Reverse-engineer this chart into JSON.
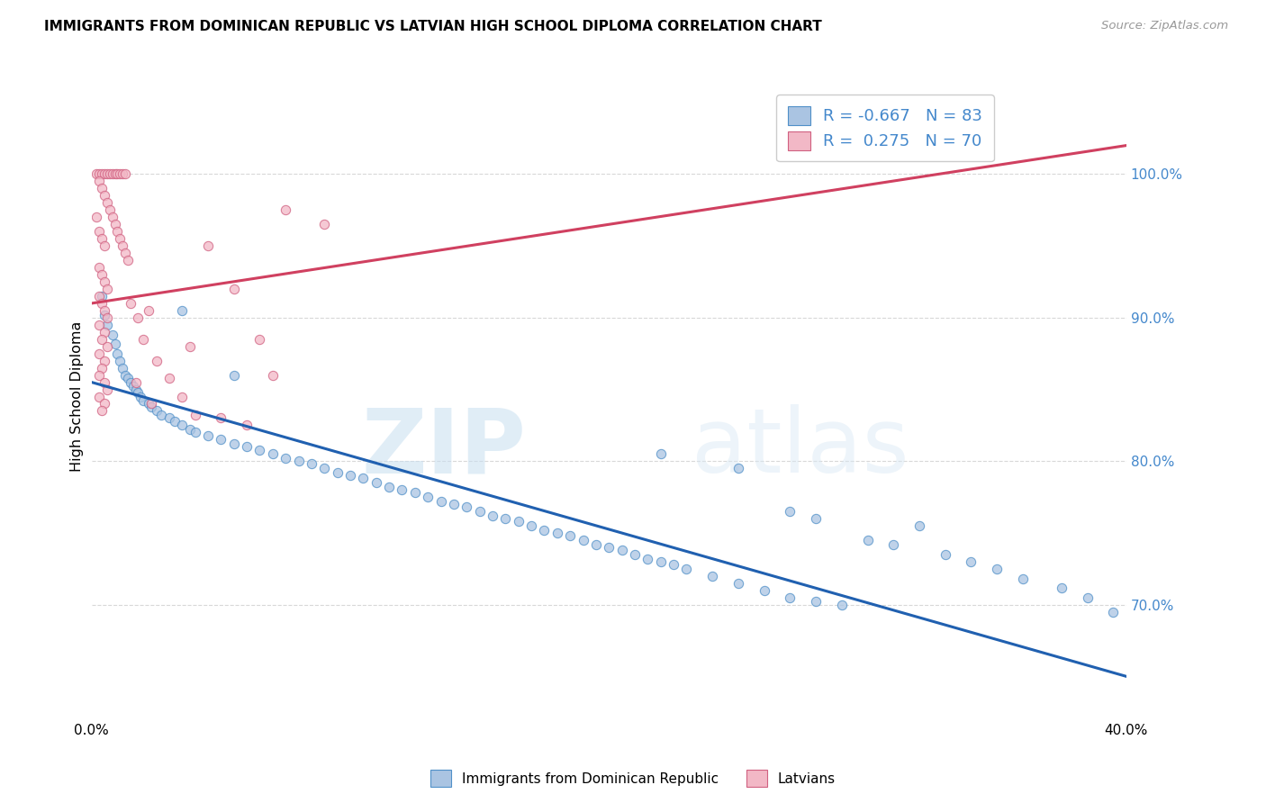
{
  "title": "IMMIGRANTS FROM DOMINICAN REPUBLIC VS LATVIAN HIGH SCHOOL DIPLOMA CORRELATION CHART",
  "source": "Source: ZipAtlas.com",
  "ylabel": "High School Diploma",
  "legend_blue_R": "-0.667",
  "legend_blue_N": "83",
  "legend_pink_R": "0.275",
  "legend_pink_N": "70",
  "legend_label_blue": "Immigrants from Dominican Republic",
  "legend_label_pink": "Latvians",
  "blue_fill_color": "#aac4e2",
  "pink_fill_color": "#f2b8c6",
  "blue_edge_color": "#5090c8",
  "pink_edge_color": "#d06080",
  "blue_line_color": "#2060b0",
  "pink_line_color": "#d04060",
  "blue_scatter": [
    [
      0.4,
      91.5
    ],
    [
      0.5,
      90.2
    ],
    [
      0.6,
      89.5
    ],
    [
      0.8,
      88.8
    ],
    [
      0.9,
      88.2
    ],
    [
      1.0,
      87.5
    ],
    [
      1.1,
      87.0
    ],
    [
      1.2,
      86.5
    ],
    [
      1.3,
      86.0
    ],
    [
      1.4,
      85.8
    ],
    [
      1.5,
      85.5
    ],
    [
      1.6,
      85.2
    ],
    [
      1.7,
      85.0
    ],
    [
      1.8,
      84.8
    ],
    [
      1.9,
      84.5
    ],
    [
      2.0,
      84.2
    ],
    [
      2.2,
      84.0
    ],
    [
      2.3,
      83.8
    ],
    [
      2.5,
      83.5
    ],
    [
      2.7,
      83.2
    ],
    [
      3.0,
      83.0
    ],
    [
      3.2,
      82.8
    ],
    [
      3.5,
      82.5
    ],
    [
      3.8,
      82.2
    ],
    [
      4.0,
      82.0
    ],
    [
      4.5,
      81.8
    ],
    [
      5.0,
      81.5
    ],
    [
      5.5,
      81.2
    ],
    [
      6.0,
      81.0
    ],
    [
      6.5,
      80.8
    ],
    [
      7.0,
      80.5
    ],
    [
      7.5,
      80.2
    ],
    [
      8.0,
      80.0
    ],
    [
      8.5,
      79.8
    ],
    [
      9.0,
      79.5
    ],
    [
      3.5,
      90.5
    ],
    [
      5.5,
      86.0
    ],
    [
      9.5,
      79.2
    ],
    [
      10.0,
      79.0
    ],
    [
      10.5,
      78.8
    ],
    [
      11.0,
      78.5
    ],
    [
      11.5,
      78.2
    ],
    [
      12.0,
      78.0
    ],
    [
      12.5,
      77.8
    ],
    [
      13.0,
      77.5
    ],
    [
      13.5,
      77.2
    ],
    [
      14.0,
      77.0
    ],
    [
      14.5,
      76.8
    ],
    [
      15.0,
      76.5
    ],
    [
      15.5,
      76.2
    ],
    [
      16.0,
      76.0
    ],
    [
      16.5,
      75.8
    ],
    [
      17.0,
      75.5
    ],
    [
      17.5,
      75.2
    ],
    [
      18.0,
      75.0
    ],
    [
      18.5,
      74.8
    ],
    [
      19.0,
      74.5
    ],
    [
      19.5,
      74.2
    ],
    [
      20.0,
      74.0
    ],
    [
      20.5,
      73.8
    ],
    [
      21.0,
      73.5
    ],
    [
      21.5,
      73.2
    ],
    [
      22.0,
      73.0
    ],
    [
      22.5,
      72.8
    ],
    [
      23.0,
      72.5
    ],
    [
      24.0,
      72.0
    ],
    [
      25.0,
      71.5
    ],
    [
      26.0,
      71.0
    ],
    [
      27.0,
      70.5
    ],
    [
      28.0,
      70.2
    ],
    [
      29.0,
      70.0
    ],
    [
      22.0,
      80.5
    ],
    [
      25.0,
      79.5
    ],
    [
      27.0,
      76.5
    ],
    [
      28.0,
      76.0
    ],
    [
      30.0,
      74.5
    ],
    [
      31.0,
      74.2
    ],
    [
      32.0,
      75.5
    ],
    [
      33.0,
      73.5
    ],
    [
      34.0,
      73.0
    ],
    [
      35.0,
      72.5
    ],
    [
      36.0,
      71.8
    ],
    [
      37.5,
      71.2
    ],
    [
      38.5,
      70.5
    ],
    [
      39.5,
      69.5
    ]
  ],
  "pink_scatter": [
    [
      0.2,
      100.0
    ],
    [
      0.3,
      100.0
    ],
    [
      0.4,
      100.0
    ],
    [
      0.5,
      100.0
    ],
    [
      0.6,
      100.0
    ],
    [
      0.7,
      100.0
    ],
    [
      0.8,
      100.0
    ],
    [
      0.9,
      100.0
    ],
    [
      1.0,
      100.0
    ],
    [
      1.1,
      100.0
    ],
    [
      1.2,
      100.0
    ],
    [
      1.3,
      100.0
    ],
    [
      0.3,
      99.5
    ],
    [
      0.4,
      99.0
    ],
    [
      0.5,
      98.5
    ],
    [
      0.6,
      98.0
    ],
    [
      0.7,
      97.5
    ],
    [
      0.8,
      97.0
    ],
    [
      0.9,
      96.5
    ],
    [
      1.0,
      96.0
    ],
    [
      1.1,
      95.5
    ],
    [
      1.2,
      95.0
    ],
    [
      1.3,
      94.5
    ],
    [
      1.4,
      94.0
    ],
    [
      0.2,
      97.0
    ],
    [
      0.3,
      96.0
    ],
    [
      0.4,
      95.5
    ],
    [
      0.5,
      95.0
    ],
    [
      0.3,
      93.5
    ],
    [
      0.4,
      93.0
    ],
    [
      0.5,
      92.5
    ],
    [
      0.6,
      92.0
    ],
    [
      0.3,
      91.5
    ],
    [
      0.4,
      91.0
    ],
    [
      0.5,
      90.5
    ],
    [
      0.6,
      90.0
    ],
    [
      0.3,
      89.5
    ],
    [
      0.5,
      89.0
    ],
    [
      0.4,
      88.5
    ],
    [
      0.6,
      88.0
    ],
    [
      0.3,
      87.5
    ],
    [
      0.5,
      87.0
    ],
    [
      0.4,
      86.5
    ],
    [
      0.3,
      86.0
    ],
    [
      0.5,
      85.5
    ],
    [
      0.6,
      85.0
    ],
    [
      0.3,
      84.5
    ],
    [
      0.5,
      84.0
    ],
    [
      0.4,
      83.5
    ],
    [
      1.5,
      91.0
    ],
    [
      1.8,
      90.0
    ],
    [
      2.0,
      88.5
    ],
    [
      2.5,
      87.0
    ],
    [
      3.0,
      85.8
    ],
    [
      3.5,
      84.5
    ],
    [
      4.0,
      83.2
    ],
    [
      5.0,
      83.0
    ],
    [
      6.0,
      82.5
    ],
    [
      4.5,
      95.0
    ],
    [
      7.5,
      97.5
    ],
    [
      9.0,
      96.5
    ],
    [
      2.2,
      90.5
    ],
    [
      3.8,
      88.0
    ],
    [
      5.5,
      92.0
    ],
    [
      6.5,
      88.5
    ],
    [
      7.0,
      86.0
    ],
    [
      1.7,
      85.5
    ],
    [
      2.3,
      84.0
    ]
  ],
  "blue_line_x": [
    0.0,
    40.0
  ],
  "blue_line_y": [
    85.5,
    65.0
  ],
  "pink_line_x": [
    0.0,
    40.0
  ],
  "pink_line_y": [
    91.0,
    102.0
  ],
  "watermark_zip": "ZIP",
  "watermark_atlas": "atlas",
  "xlim": [
    0,
    40
  ],
  "ylim": [
    62,
    107
  ],
  "x_tick_positions": [
    0,
    10,
    20,
    30,
    40
  ],
  "x_tick_labels": [
    "0.0%",
    "",
    "",
    "",
    "40.0%"
  ],
  "y_tick_positions": [
    70,
    80,
    90,
    100
  ],
  "y_tick_labels": [
    "70.0%",
    "80.0%",
    "90.0%",
    "100.0%"
  ],
  "right_axis_color": "#4488cc",
  "grid_color": "#d8d8d8",
  "scatter_size": 55,
  "scatter_alpha": 0.75,
  "scatter_linewidth": 0.8,
  "trend_linewidth": 2.2
}
